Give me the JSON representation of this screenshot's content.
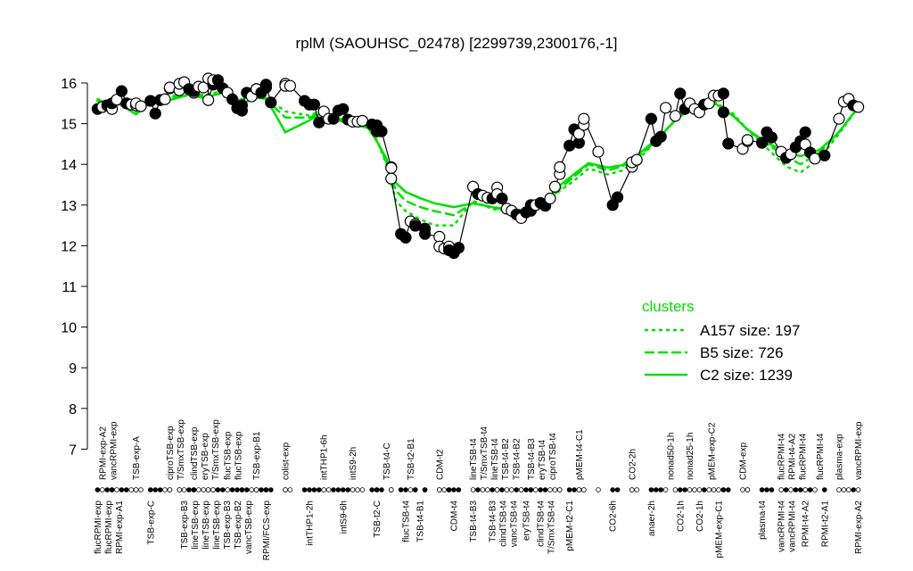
{
  "chart_data": {
    "type": "line",
    "title": "rplM (SAOUHSC_02478) [2299739,2300176,-1]",
    "xlabel": "",
    "ylabel": "",
    "ylim": [
      7,
      16
    ],
    "xlim": [
      0,
      160
    ],
    "yticks": [
      "7",
      "8",
      "9",
      "10",
      "11",
      "12",
      "13",
      "14",
      "15",
      "16"
    ],
    "grid": false,
    "colors": {
      "points": "#000000",
      "cluster": "#00e000"
    },
    "points": [
      [
        1,
        15.36,
        1
      ],
      [
        2,
        15.41,
        0
      ],
      [
        3,
        15.45,
        1
      ],
      [
        4,
        15.36,
        0
      ],
      [
        4,
        15.5,
        1
      ],
      [
        5,
        15.59,
        0
      ],
      [
        6,
        15.8,
        1
      ],
      [
        7,
        15.5,
        1
      ],
      [
        8,
        15.47,
        0
      ],
      [
        9,
        15.45,
        0
      ],
      [
        9,
        15.5,
        0
      ],
      [
        10,
        15.43,
        0
      ],
      [
        12,
        15.56,
        1
      ],
      [
        13,
        15.25,
        1
      ],
      [
        14,
        15.58,
        1
      ],
      [
        15,
        15.6,
        0
      ],
      [
        16,
        15.87,
        0
      ],
      [
        16,
        15.89,
        0
      ],
      [
        18,
        15.82,
        0
      ],
      [
        18,
        15.98,
        0
      ],
      [
        19,
        16.02,
        0
      ],
      [
        20,
        15.85,
        1
      ],
      [
        21,
        15.76,
        0
      ],
      [
        21,
        15.8,
        1
      ],
      [
        22,
        15.91,
        0
      ],
      [
        23,
        15.89,
        0
      ],
      [
        24,
        16.11,
        0
      ],
      [
        24,
        15.58,
        0
      ],
      [
        25,
        15.96,
        1
      ],
      [
        25,
        16.07,
        0
      ],
      [
        26,
        16.07,
        1
      ],
      [
        27,
        15.87,
        1
      ],
      [
        28,
        15.76,
        0
      ],
      [
        29,
        15.6,
        1
      ],
      [
        30,
        15.38,
        1
      ],
      [
        31,
        15.32,
        1
      ],
      [
        31,
        15.45,
        1
      ],
      [
        32,
        15.76,
        1
      ],
      [
        33,
        15.67,
        0
      ],
      [
        34,
        15.85,
        0
      ],
      [
        34,
        15.85,
        0
      ],
      [
        35,
        15.76,
        1
      ],
      [
        36,
        15.89,
        1
      ],
      [
        36,
        15.96,
        1
      ],
      [
        37,
        15.52,
        1
      ],
      [
        40,
        15.98,
        0
      ],
      [
        40,
        15.93,
        0
      ],
      [
        41,
        15.93,
        0
      ],
      [
        44,
        15.56,
        1
      ],
      [
        45,
        15.47,
        1
      ],
      [
        46,
        15.47,
        1
      ],
      [
        47,
        15.03,
        1
      ],
      [
        48,
        15.3,
        0
      ],
      [
        49,
        15.12,
        0
      ],
      [
        50,
        15.12,
        1
      ],
      [
        51,
        15.32,
        1
      ],
      [
        52,
        15.36,
        1
      ],
      [
        53,
        15.1,
        1
      ],
      [
        54,
        15.05,
        0
      ],
      [
        55,
        15.05,
        0
      ],
      [
        56,
        15.07,
        0
      ],
      [
        58,
        14.98,
        1
      ],
      [
        59,
        14.96,
        1
      ],
      [
        59,
        14.81,
        1
      ],
      [
        60,
        14.81,
        1
      ],
      [
        62,
        13.93,
        0
      ],
      [
        62,
        13.91,
        0
      ],
      [
        62,
        13.65,
        0
      ],
      [
        64,
        12.29,
        1
      ],
      [
        65,
        12.2,
        1
      ],
      [
        66,
        12.6,
        0
      ],
      [
        67,
        12.53,
        0
      ],
      [
        67,
        12.49,
        1
      ],
      [
        69,
        12.42,
        1
      ],
      [
        69,
        12.29,
        1
      ],
      [
        72,
        12.22,
        0
      ],
      [
        72,
        11.98,
        0
      ],
      [
        73,
        11.93,
        0
      ],
      [
        74,
        11.98,
        0
      ],
      [
        74,
        11.89,
        1
      ],
      [
        75,
        11.82,
        1
      ],
      [
        76,
        11.95,
        1
      ],
      [
        79,
        13.45,
        0
      ],
      [
        80,
        13.27,
        1
      ],
      [
        81,
        13.23,
        0
      ],
      [
        82,
        13.18,
        0
      ],
      [
        83,
        13.16,
        1
      ],
      [
        84,
        13.43,
        0
      ],
      [
        84,
        13.27,
        0
      ],
      [
        85,
        13.16,
        1
      ],
      [
        86,
        12.91,
        0
      ],
      [
        87,
        12.86,
        0
      ],
      [
        88,
        12.77,
        1
      ],
      [
        89,
        12.73,
        1
      ],
      [
        89,
        12.68,
        0
      ],
      [
        90,
        12.82,
        1
      ],
      [
        91,
        13.0,
        1
      ],
      [
        91,
        12.86,
        1
      ],
      [
        92,
        13.0,
        0
      ],
      [
        93,
        13.05,
        1
      ],
      [
        94,
        12.98,
        1
      ],
      [
        95,
        13.16,
        0
      ],
      [
        96,
        13.45,
        0
      ],
      [
        97,
        13.76,
        0
      ],
      [
        97,
        13.93,
        0
      ],
      [
        99,
        14.46,
        1
      ],
      [
        100,
        14.86,
        1
      ],
      [
        101,
        14.53,
        1
      ],
      [
        101,
        14.75,
        0
      ],
      [
        102,
        14.97,
        0
      ],
      [
        102,
        15.12,
        0
      ],
      [
        105,
        14.31,
        0
      ],
      [
        108,
        13.0,
        1
      ],
      [
        109,
        13.19,
        1
      ],
      [
        112,
        13.94,
        0
      ],
      [
        112,
        14.05,
        0
      ],
      [
        113,
        14.11,
        0
      ],
      [
        116,
        15.12,
        1
      ],
      [
        117,
        14.57,
        1
      ],
      [
        118,
        14.68,
        1
      ],
      [
        119,
        15.39,
        0
      ],
      [
        121,
        15.19,
        0
      ],
      [
        122,
        15.74,
        1
      ],
      [
        123,
        15.36,
        1
      ],
      [
        124,
        15.5,
        0
      ],
      [
        125,
        15.36,
        0
      ],
      [
        126,
        15.28,
        0
      ],
      [
        127,
        15.47,
        1
      ],
      [
        128,
        15.5,
        0
      ],
      [
        129,
        15.69,
        0
      ],
      [
        130,
        15.69,
        0
      ],
      [
        131,
        15.74,
        1
      ],
      [
        131,
        15.28,
        1
      ],
      [
        132,
        14.51,
        1
      ],
      [
        135,
        14.38,
        0
      ],
      [
        136,
        14.57,
        0
      ],
      [
        136,
        14.6,
        0
      ],
      [
        139,
        14.53,
        1
      ],
      [
        140,
        14.79,
        1
      ],
      [
        141,
        14.66,
        1
      ],
      [
        143,
        14.31,
        0
      ],
      [
        144,
        14.16,
        1
      ],
      [
        145,
        14.25,
        0
      ],
      [
        146,
        14.42,
        1
      ],
      [
        147,
        14.57,
        1
      ],
      [
        148,
        14.79,
        1
      ],
      [
        148,
        14.49,
        0
      ],
      [
        149,
        14.29,
        1
      ],
      [
        150,
        14.14,
        0
      ],
      [
        152,
        14.22,
        1
      ],
      [
        155,
        15.12,
        0
      ],
      [
        156,
        15.54,
        0
      ],
      [
        157,
        15.61,
        0
      ],
      [
        158,
        15.45,
        1
      ],
      [
        159,
        15.41,
        0
      ]
    ],
    "cluster_x": [
      1,
      5,
      9,
      12,
      16,
      20,
      23,
      27,
      31,
      34,
      36,
      40,
      45,
      47,
      53,
      57,
      59,
      61,
      63,
      65,
      68,
      71,
      75,
      79,
      83,
      86,
      90,
      94,
      97,
      100,
      103,
      107,
      110,
      114,
      118,
      121,
      125,
      129,
      133,
      136,
      140,
      144,
      147,
      151,
      155,
      159
    ],
    "series": [
      {
        "name": "A157 size: 197",
        "style": "dotted",
        "values": [
          15.6,
          15.5,
          15.4,
          15.55,
          15.65,
          15.8,
          15.7,
          15.8,
          15.6,
          15.7,
          15.65,
          15.3,
          15.2,
          15.3,
          15.05,
          14.95,
          14.6,
          14.0,
          13.1,
          12.85,
          12.65,
          12.5,
          12.5,
          13.1,
          12.9,
          12.85,
          12.8,
          13.0,
          13.35,
          13.6,
          13.9,
          13.75,
          13.85,
          14.2,
          14.7,
          15.1,
          15.5,
          15.55,
          15.25,
          14.85,
          14.4,
          13.95,
          13.8,
          14.15,
          14.75,
          15.4
        ]
      },
      {
        "name": "B5 size: 726",
        "style": "dashed",
        "values": [
          15.55,
          15.5,
          15.3,
          15.5,
          15.6,
          15.75,
          15.65,
          15.75,
          15.55,
          15.65,
          15.6,
          15.15,
          15.15,
          15.25,
          15.0,
          14.9,
          14.6,
          14.05,
          13.35,
          13.1,
          12.95,
          12.85,
          12.75,
          13.05,
          12.95,
          12.9,
          12.85,
          13.0,
          13.4,
          13.7,
          14.0,
          13.85,
          13.95,
          14.25,
          14.7,
          15.1,
          15.45,
          15.5,
          15.2,
          14.85,
          14.5,
          14.2,
          14.0,
          14.3,
          14.8,
          15.4
        ]
      },
      {
        "name": "C2 size: 1239",
        "style": "solid",
        "values": [
          15.56,
          15.52,
          15.23,
          15.52,
          15.58,
          15.71,
          15.63,
          15.76,
          15.5,
          15.63,
          15.63,
          14.79,
          15.08,
          15.23,
          15.01,
          14.93,
          14.57,
          14.14,
          13.54,
          13.32,
          13.17,
          13.04,
          12.95,
          13.04,
          12.95,
          12.86,
          12.89,
          13.08,
          13.48,
          13.76,
          14.03,
          13.92,
          13.98,
          14.31,
          14.71,
          15.08,
          15.45,
          15.52,
          15.19,
          14.86,
          14.53,
          14.31,
          14.2,
          14.36,
          14.79,
          15.41
        ]
      }
    ],
    "legend": {
      "title": "clusters",
      "placement": "right"
    },
    "upper_labels": [
      [
        2,
        "RPMI-exp-A2"
      ],
      [
        3,
        "vancRPMI-exp"
      ],
      [
        9,
        "TSB-exp-A"
      ],
      [
        16,
        "ciproTSB-exp"
      ],
      [
        18,
        "T/SmxTSB-exp"
      ],
      [
        21,
        "clindTSB-exp"
      ],
      [
        23,
        "eryTSB-exp"
      ],
      [
        25,
        "T/SmxTSB-exp"
      ],
      [
        28,
        "flucTSB-exp"
      ],
      [
        29.5,
        "flucTSB-exp"
      ],
      [
        34,
        "TSB-exp-B1"
      ],
      [
        40,
        "colist-exp"
      ],
      [
        48,
        "intTHP1-6h"
      ],
      [
        54,
        "intS9-2h"
      ],
      [
        61,
        "TSB-t4-C"
      ],
      [
        66,
        "TSB-t2-B1"
      ],
      [
        72,
        "CDM-t2"
      ],
      [
        79,
        "lineTSB-t4"
      ],
      [
        81,
        "T/SmxTSB-t4"
      ],
      [
        83,
        "lineTSB-t4"
      ],
      [
        85,
        "TSB-t4-B2"
      ],
      [
        88,
        "TSB-t4-B2"
      ],
      [
        91,
        "TSB-t4-B3"
      ],
      [
        93,
        "eryTSB-t4"
      ],
      [
        95.5,
        "ciproTSB-t4"
      ],
      [
        101,
        "pMEM-t4-C1"
      ],
      [
        112,
        "CO2-2h"
      ],
      [
        120,
        "nonad50-1h"
      ],
      [
        124,
        "nonad25-1h"
      ],
      [
        128.5,
        "pMEM-exp-C2"
      ],
      [
        135,
        "CDM-exp"
      ],
      [
        143,
        "flucRPMI-t4"
      ],
      [
        144,
        "RPMI-t4-A2"
      ],
      [
        147,
        "flucRPMI-t4"
      ],
      [
        151,
        "flucRPMI-t4"
      ],
      [
        155,
        "plasma-exp"
      ],
      [
        159,
        "vancRPMI-exp"
      ]
    ],
    "lower_labels": [
      [
        1,
        "flucRPMI-exp"
      ],
      [
        3,
        "flucRPMI-exp"
      ],
      [
        5,
        "RPMI-exp-A1"
      ],
      [
        12,
        "TSB-exp-C"
      ],
      [
        19,
        "TSB-exp-B3"
      ],
      [
        21,
        "lineTSB-exp"
      ],
      [
        23,
        "lineTSB-exp"
      ],
      [
        25,
        "lineTSB-exp"
      ],
      [
        25.6,
        "TSB-exp-B3"
      ],
      [
        27,
        "TSB-exp-B2"
      ],
      [
        29,
        "vancTSB-exp"
      ],
      [
        36,
        "RPMI/FCS-exp"
      ],
      [
        45,
        "intTHP1-2h"
      ],
      [
        52,
        "intS9-6h"
      ],
      [
        59,
        "TSB-t2-C"
      ],
      [
        65,
        "flucTSB-t4"
      ],
      [
        68,
        "TSB-t4-B1"
      ],
      [
        75,
        "CDM-t4"
      ],
      [
        79,
        "TSB-t4-B3"
      ],
      [
        83,
        "TSB-t4-B3"
      ],
      [
        85,
        "clindTSB-t4"
      ],
      [
        87,
        "vancTSB-t4"
      ],
      [
        90,
        "eryTSB-t4"
      ],
      [
        93,
        "clindTSB-t4"
      ],
      [
        95,
        "T/SmxTSB-t4"
      ],
      [
        99,
        "pMEM-t2-C1"
      ],
      [
        108,
        "CO2-6h"
      ],
      [
        116,
        "anaer-2h"
      ],
      [
        122,
        "CO2-1h"
      ],
      [
        126,
        "CO2-1h"
      ],
      [
        130,
        "pMEM-exp-C1"
      ],
      [
        139,
        "plasma-t4"
      ],
      [
        143,
        "vancRPMI-t4"
      ],
      [
        144,
        "vancRPMI-t4"
      ],
      [
        148,
        "RPMI-t4-A2"
      ],
      [
        152,
        "RPMI-t2-A1"
      ],
      [
        159,
        "RPMI-exp-A2"
      ]
    ]
  }
}
